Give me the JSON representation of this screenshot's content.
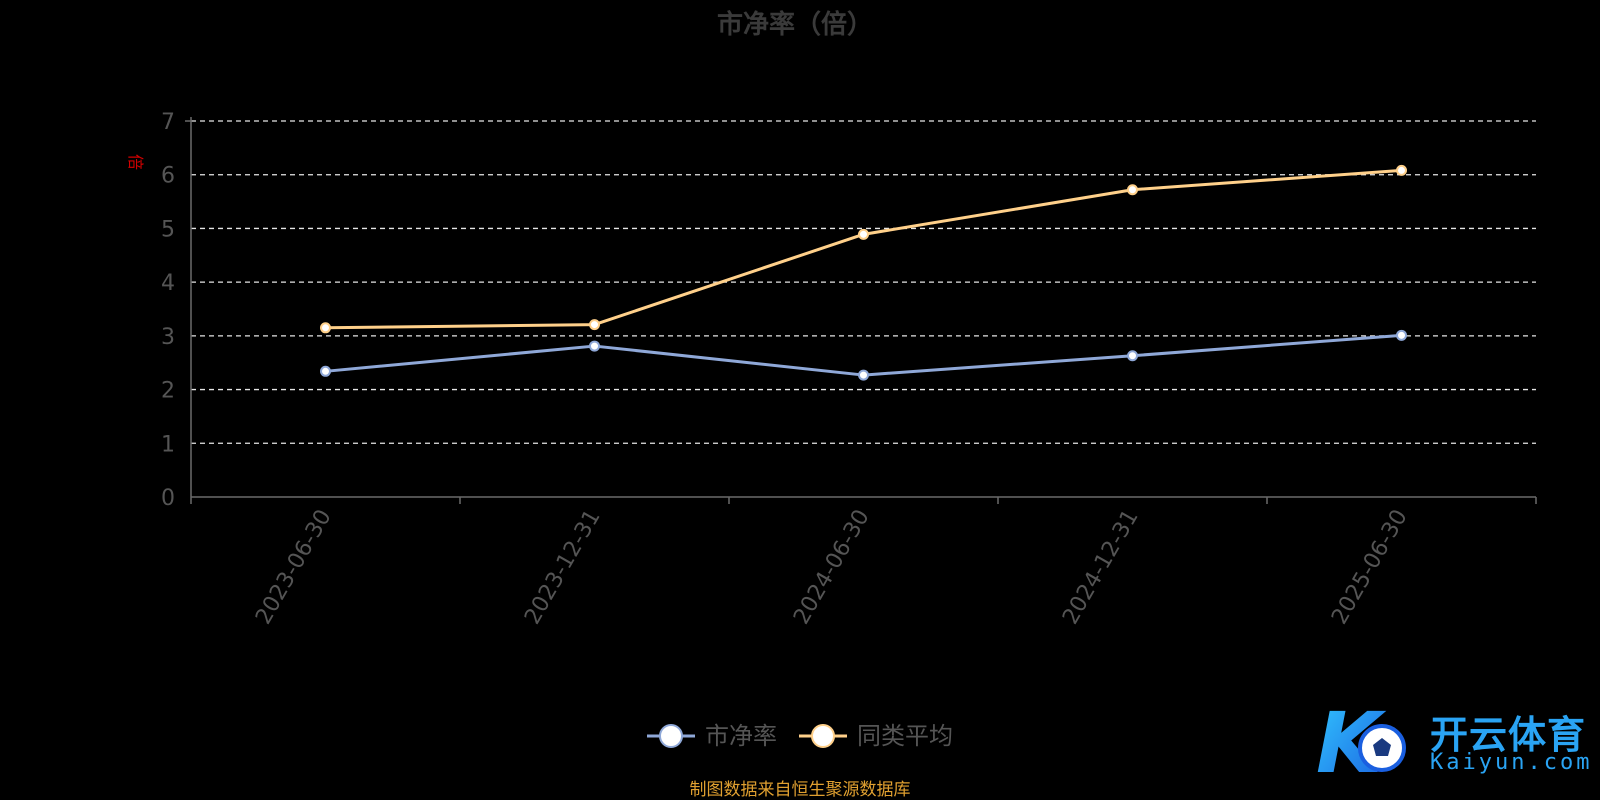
{
  "chart_data": {
    "type": "line",
    "title": "市净率（倍）",
    "ylabel": "倍",
    "xlabel": "",
    "categories": [
      "2023-06-30",
      "2023-12-31",
      "2024-06-30",
      "2024-12-31",
      "2025-06-30"
    ],
    "ylim": [
      0,
      7
    ],
    "yticks": [
      0,
      1,
      2,
      3,
      4,
      5,
      6,
      7
    ],
    "grid": true,
    "legend_position": "bottom-center",
    "series": [
      {
        "name": "市净率",
        "values": [
          2.34,
          2.81,
          2.27,
          2.63,
          3.01
        ],
        "color": "#8fa8d8"
      },
      {
        "name": "同类平均",
        "values": [
          3.15,
          3.21,
          4.89,
          5.72,
          6.08
        ],
        "color": "#ffd08a"
      }
    ]
  },
  "source_note": "制图数据来自恒生聚源数据库",
  "logo": {
    "cn": "开云体育",
    "en": "Kaiyun.com",
    "mark": "K",
    "color": "#2aa4f4"
  }
}
